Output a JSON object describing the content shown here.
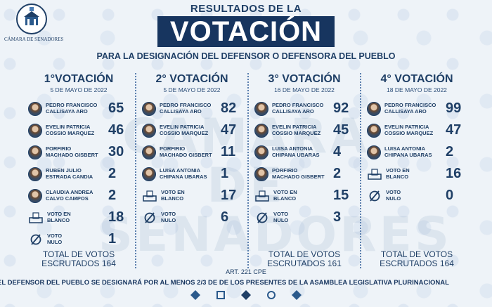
{
  "logo": {
    "text": "CÁMARA DE SENADORES"
  },
  "header": {
    "title_small": "RESULTADOS DE LA",
    "title_big": "VOTACIÓN",
    "subtitle": "PARA LA DESIGNACIÓN  DEL DEFENSOR O DEFENSORA DEL PUEBLO"
  },
  "watermark": {
    "line1": "CÁMARA DE",
    "line2": "SENADORES"
  },
  "columns": [
    {
      "title": "1°VOTACIÓN",
      "date": "5 DE MAYO DE 2022",
      "candidates": [
        {
          "name1": "PEDRO FRANCISCO",
          "name2": "CALLISAYA ARO",
          "votes": "65"
        },
        {
          "name1": "EVELIN PATRICIA",
          "name2": "COSSIO MARQUEZ",
          "votes": "46"
        },
        {
          "name1": "PORFIRIO",
          "name2": "MACHADO GISBERT",
          "votes": "30"
        },
        {
          "name1": "RUBEN JULIO",
          "name2": "ESTRADA CANDIA",
          "votes": "2"
        },
        {
          "name1": "CLAUDIA ANDREA",
          "name2": "CALVO CAMPOS",
          "votes": "2"
        }
      ],
      "blank": {
        "label1": "VOTO EN",
        "label2": "BLANCO",
        "votes": "18"
      },
      "null": {
        "label1": "VOTO",
        "label2": "NULO",
        "votes": "1"
      },
      "total1": "TOTAL DE VOTOS",
      "total2": "ESCRUTADOS 164"
    },
    {
      "title": "2° VOTACIÓN",
      "date": "5 DE MAYO DE 2022",
      "candidates": [
        {
          "name1": "PEDRO FRANCISCO",
          "name2": "CALLISAYA ARO",
          "votes": "82"
        },
        {
          "name1": "EVELIN PATRICIA",
          "name2": "COSSIO MARQUEZ",
          "votes": "47"
        },
        {
          "name1": "PORFIRIO",
          "name2": "MACHADO GISBERT",
          "votes": "11"
        },
        {
          "name1": "LUISA ANTONIA",
          "name2": "CHIPANA UBARAS",
          "votes": "1"
        }
      ],
      "blank": {
        "label1": "VOTO EN",
        "label2": "BLANCO",
        "votes": "17"
      },
      "null": {
        "label1": "VOTO",
        "label2": "NULO",
        "votes": "6"
      },
      "total1": "",
      "total2": ""
    },
    {
      "title": "3° VOTACIÓN",
      "date": "16 DE MAYO DE 2022",
      "candidates": [
        {
          "name1": "PEDRO FRANCISCO",
          "name2": "CALLISAYA ARO",
          "votes": "92"
        },
        {
          "name1": "EVELIN PATRICIA",
          "name2": "COSSIO MARQUEZ",
          "votes": "45"
        },
        {
          "name1": "LUISA ANTONIA",
          "name2": "CHIPANA UBARAS",
          "votes": "4"
        },
        {
          "name1": "PORFIRIO",
          "name2": "MACHADO GISBERT",
          "votes": "2"
        }
      ],
      "blank": {
        "label1": "VOTO EN",
        "label2": "BLANCO",
        "votes": "15"
      },
      "null": {
        "label1": "VOTO",
        "label2": "NULO",
        "votes": "3"
      },
      "total1": "TOTAL DE VOTOS",
      "total2": "ESCRUTADOS 161"
    },
    {
      "title": "4° VOTACIÓN",
      "date": "18 DE MAYO DE 2022",
      "candidates": [
        {
          "name1": "PEDRO FRANCISCO",
          "name2": "CALLISAYA ARO",
          "votes": "99"
        },
        {
          "name1": "EVELIN PATRICIA",
          "name2": "COSSIO MARQUEZ",
          "votes": "47"
        },
        {
          "name1": "LUISA ANTONIA",
          "name2": "CHIPANA UBARAS",
          "votes": "2"
        }
      ],
      "blank": {
        "label1": "VOTO EN",
        "label2": "BLANCO",
        "votes": "16"
      },
      "null": {
        "label1": "VOTO",
        "label2": "NULO",
        "votes": "0"
      },
      "total1": "TOTAL DE VOTOS",
      "total2": "ESCRUTADOS 164"
    }
  ],
  "footer": {
    "article": "ART. 221 CPE",
    "line": "EL DEFENSOR  DEL PUEBLO SE DESIGNARÁ POR AL MENOS 2/3 DE  DE LOS PRESENTES DE LA ASAMBLEA LEGISLATIVA PLURINACIONAL"
  },
  "colors": {
    "navy": "#17355f",
    "text": "#1f3f66",
    "background": "#eef3f8"
  }
}
